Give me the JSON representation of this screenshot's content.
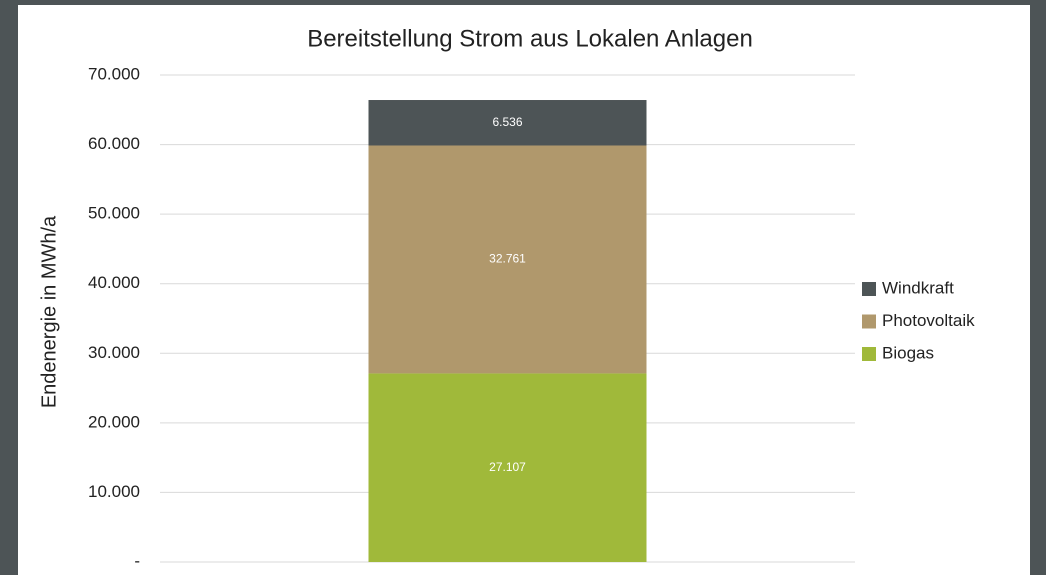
{
  "chart_data": {
    "type": "stacked_bar",
    "title": "Bereitstellung Strom aus Lokalen Anlagen",
    "y_label": "Endenergie in MWh/a",
    "categories": [
      null
    ],
    "series": [
      {
        "name": "Biogas",
        "color": "#a0b93a",
        "values": [
          27107
        ],
        "value_labels": [
          "27.107"
        ]
      },
      {
        "name": "Photovoltaik",
        "color": "#b0986c",
        "values": [
          32761
        ],
        "value_labels": [
          "32.761"
        ]
      },
      {
        "name": "Windkraft",
        "color": "#4d5456",
        "values": [
          6536
        ],
        "value_labels": [
          "6.536"
        ]
      }
    ],
    "ylim": [
      0,
      70000
    ],
    "yticks": [
      {
        "value": 0,
        "label": "-"
      },
      {
        "value": 10000,
        "label": "10.000"
      },
      {
        "value": 20000,
        "label": "20.000"
      },
      {
        "value": 30000,
        "label": "30.000"
      },
      {
        "value": 40000,
        "label": "40.000"
      },
      {
        "value": 50000,
        "label": "50.000"
      },
      {
        "value": 60000,
        "label": "60.000"
      },
      {
        "value": 70000,
        "label": "70.000"
      }
    ],
    "grid": true,
    "legend": "right"
  }
}
